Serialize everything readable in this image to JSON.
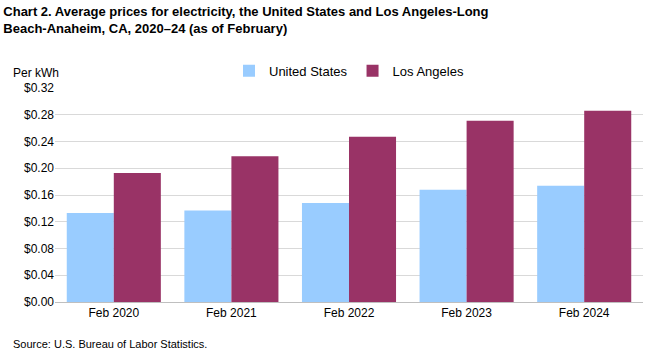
{
  "chart_data": {
    "type": "bar",
    "title": "Chart 2. Average prices for electricity, the United States and Los Angeles-Long Beach-Anaheim, CA, 2020–24 (as of February)",
    "ylabel": "Per kWh",
    "annotations": [
      "Source: U.S. Bureau of Labor Statistics."
    ],
    "categories": [
      "Feb 2020",
      "Feb 2021",
      "Feb 2022",
      "Feb 2023",
      "Feb 2024"
    ],
    "series": [
      {
        "name": "United States",
        "color": "#99ccff",
        "values": [
          0.133,
          0.137,
          0.148,
          0.168,
          0.174
        ]
      },
      {
        "name": "Los Angeles",
        "color": "#993366",
        "values": [
          0.193,
          0.218,
          0.247,
          0.271,
          0.286
        ]
      }
    ],
    "ylim": [
      0,
      0.32
    ],
    "yticks": [
      {
        "value": 0,
        "label": "$0.00"
      },
      {
        "value": 0.04,
        "label": "$0.04"
      },
      {
        "value": 0.08,
        "label": "$0.08"
      },
      {
        "value": 0.12,
        "label": "$0.12"
      },
      {
        "value": 0.16,
        "label": "$0.16"
      },
      {
        "value": 0.2,
        "label": "$0.20"
      },
      {
        "value": 0.24,
        "label": "$0.24"
      },
      {
        "value": 0.28,
        "label": "$0.28"
      },
      {
        "value": 0.32,
        "label": "$0.32"
      }
    ],
    "grid": true,
    "legend": "top"
  }
}
